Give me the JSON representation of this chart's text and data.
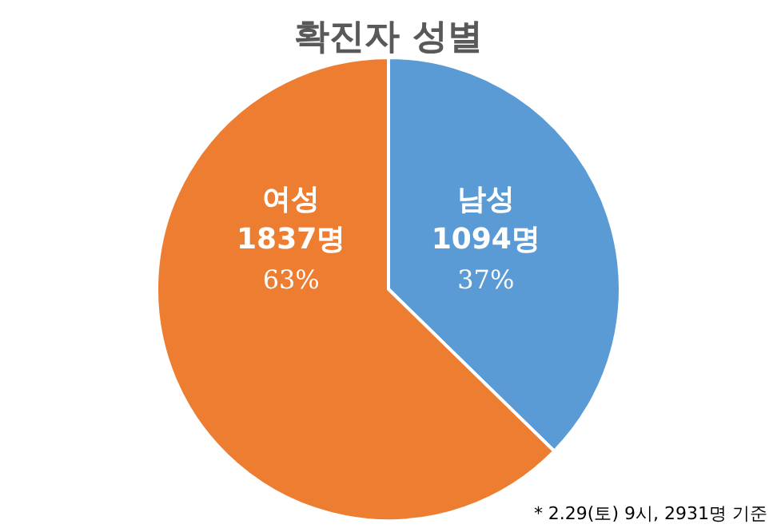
{
  "chart_data": {
    "type": "pie",
    "title": "확진자 성별",
    "categories": [
      "남성",
      "여성"
    ],
    "values": [
      1094,
      1837
    ],
    "colors": [
      "#5b9bd5",
      "#ed7d31"
    ],
    "value_labels": [
      "1094명\n37%",
      "1837명\n63%"
    ],
    "annotations": [
      "* 2.29(토) 9시, 2931명 기준"
    ]
  }
}
